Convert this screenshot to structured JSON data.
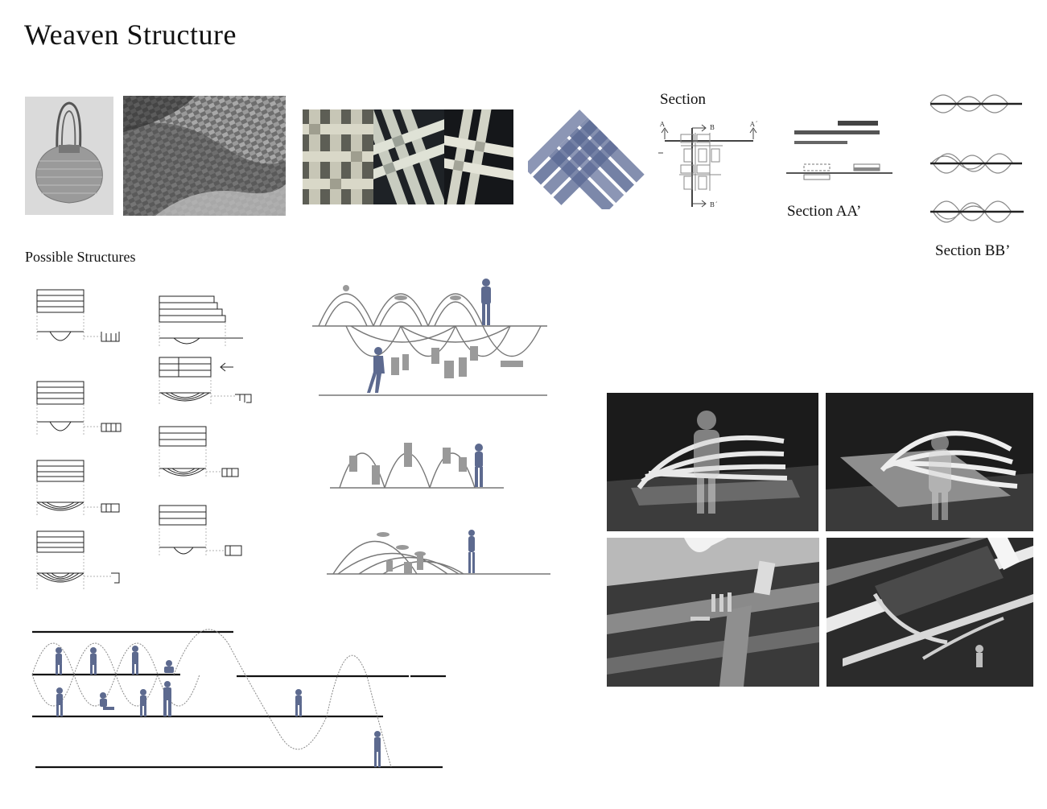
{
  "title": "Weaven Structure",
  "labels": {
    "section": "Section",
    "section_aa": "Section AA’",
    "section_bb": "Section BB’",
    "possible_structures": "Possible Structures"
  },
  "section_marks": {
    "a": "A",
    "a_prime": "A´",
    "b": "B",
    "b_prime": "B´"
  },
  "colors": {
    "figure_blue": "#5d6a8f",
    "weave_blue": "#4a5a8a",
    "line": "#555555"
  }
}
